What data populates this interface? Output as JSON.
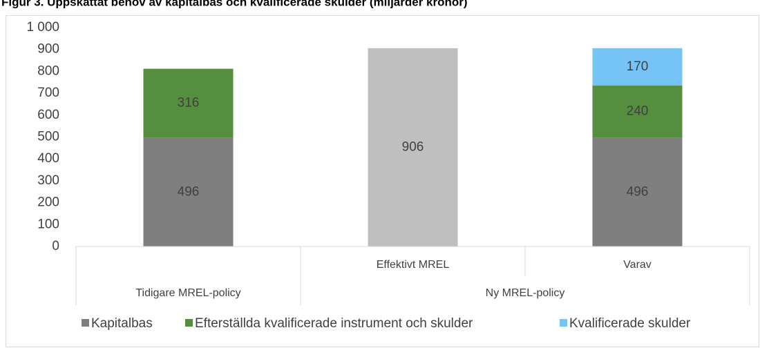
{
  "chart_data": {
    "type": "stacked_bar",
    "title": "Figur 3. Uppskattat behov av kapitalbas och kvalificerade skulder (miljarder kronor)",
    "categories": [
      null,
      "Effektivt MREL",
      "Varav"
    ],
    "groups": [
      {
        "label": "Tidigare MREL-policy",
        "span": 1
      },
      {
        "label": "Ny MREL-policy",
        "span": 2
      }
    ],
    "series": [
      {
        "name": "Kapitalbas",
        "color": "#7f7f7f",
        "values": [
          496,
          null,
          496
        ]
      },
      {
        "name": "Efterställda kvalificerade instrument och skulder",
        "color": "#548e3e",
        "values": [
          316,
          null,
          240
        ]
      },
      {
        "name": "Kvalificerade skulder",
        "color": "#75c4f5",
        "values": [
          null,
          null,
          170
        ]
      },
      {
        "color": "#bfbfbf",
        "values": [
          null,
          906,
          null
        ]
      }
    ],
    "ylim": [
      0,
      1000
    ],
    "yticks": [
      0,
      100,
      200,
      300,
      400,
      500,
      600,
      700,
      800,
      900,
      {
        "value": 1000,
        "label": "1 000"
      }
    ],
    "legend": "bottom"
  }
}
